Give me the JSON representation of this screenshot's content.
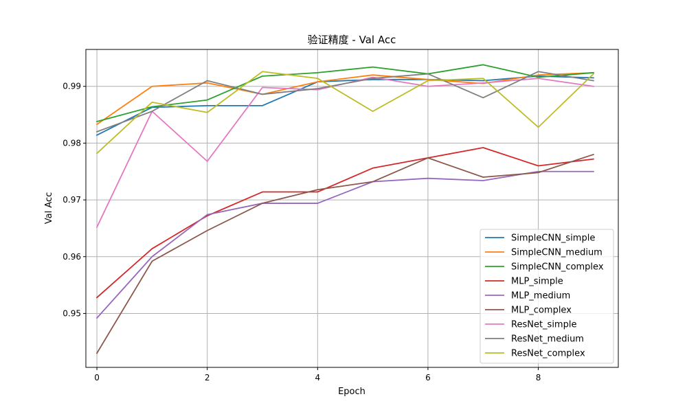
{
  "chart_data": {
    "type": "line",
    "title": "验证精度 - Val Acc",
    "xlabel": "Epoch",
    "ylabel": "Val Acc",
    "x": [
      0,
      1,
      2,
      3,
      4,
      5,
      6,
      7,
      8,
      9
    ],
    "xlim": [
      -0.2,
      9.45
    ],
    "ylim": [
      0.9405,
      0.9965
    ],
    "x_ticks": [
      0,
      2,
      4,
      6,
      8
    ],
    "y_ticks": [
      0.95,
      0.96,
      0.97,
      0.98,
      0.99
    ],
    "x_tick_labels": [
      "0",
      "2",
      "4",
      "6",
      "8"
    ],
    "y_tick_labels": [
      "0.95",
      "0.96",
      "0.97",
      "0.98",
      "0.99"
    ],
    "grid": true,
    "legend_position": "lower-right",
    "series": [
      {
        "name": "SimpleCNN_simple",
        "color": "#1f77b4",
        "values": [
          0.9814,
          0.9863,
          0.9866,
          0.9866,
          0.9908,
          0.9912,
          0.9912,
          0.991,
          0.9918,
          0.9915
        ]
      },
      {
        "name": "SimpleCNN_medium",
        "color": "#ff7f0e",
        "values": [
          0.9833,
          0.99,
          0.9906,
          0.9886,
          0.9908,
          0.992,
          0.9912,
          0.9905,
          0.992,
          0.9924
        ]
      },
      {
        "name": "SimpleCNN_complex",
        "color": "#2ca02c",
        "values": [
          0.9838,
          0.9864,
          0.9876,
          0.9918,
          0.9924,
          0.9934,
          0.9922,
          0.9938,
          0.9916,
          0.9924
        ]
      },
      {
        "name": "MLP_simple",
        "color": "#d62728",
        "values": [
          0.9528,
          0.9614,
          0.9672,
          0.9714,
          0.9714,
          0.9756,
          0.9774,
          0.9792,
          0.976,
          0.9772
        ]
      },
      {
        "name": "MLP_medium",
        "color": "#9467bd",
        "values": [
          0.9492,
          0.96,
          0.9674,
          0.9694,
          0.9694,
          0.9732,
          0.9738,
          0.9734,
          0.975,
          0.975
        ]
      },
      {
        "name": "MLP_complex",
        "color": "#8c564b",
        "values": [
          0.943,
          0.9592,
          0.9646,
          0.9694,
          0.9718,
          0.9732,
          0.9774,
          0.974,
          0.9748,
          0.978
        ]
      },
      {
        "name": "ResNet_simple",
        "color": "#e377c2",
        "values": [
          0.9652,
          0.9856,
          0.9768,
          0.9898,
          0.9894,
          0.9916,
          0.99,
          0.9906,
          0.9914,
          0.99
        ]
      },
      {
        "name": "ResNet_medium",
        "color": "#7f7f7f",
        "values": [
          0.982,
          0.9856,
          0.991,
          0.9886,
          0.9896,
          0.9914,
          0.9922,
          0.988,
          0.9926,
          0.991
        ]
      },
      {
        "name": "ResNet_complex",
        "color": "#bcbd22",
        "values": [
          0.9782,
          0.9872,
          0.9854,
          0.9926,
          0.9914,
          0.9856,
          0.991,
          0.9914,
          0.9828,
          0.9922
        ]
      }
    ]
  }
}
